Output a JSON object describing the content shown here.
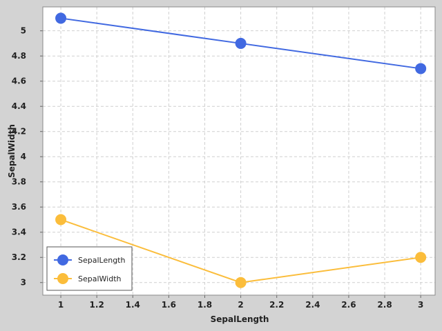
{
  "chart_data": {
    "type": "line",
    "title": "",
    "xlabel": "SepalLength",
    "ylabel": "SepalWidth",
    "xlim": [
      0.9,
      3.08
    ],
    "ylim": [
      2.9,
      5.19
    ],
    "x_ticks": [
      1,
      1.2,
      1.4,
      1.6,
      1.8,
      2,
      2.2,
      2.4,
      2.6,
      2.8,
      3
    ],
    "x_tick_labels": [
      "1",
      "1.2",
      "1.4",
      "1.6",
      "1.8",
      "2",
      "2.2",
      "2.4",
      "2.6",
      "2.8",
      "3"
    ],
    "y_ticks": [
      3,
      3.2,
      3.4,
      3.6,
      3.8,
      4,
      4.2,
      4.4,
      4.6,
      4.8,
      5
    ],
    "y_tick_labels": [
      "3",
      "3.2",
      "3.4",
      "3.6",
      "3.8",
      "4",
      "4.2",
      "4.4",
      "4.6",
      "4.8",
      "5"
    ],
    "grid": true,
    "legend_position": "bottom-left",
    "series": [
      {
        "name": "SepalLength",
        "color": "#4169e1",
        "x": [
          1,
          2,
          3
        ],
        "y": [
          5.1,
          4.9,
          4.7
        ]
      },
      {
        "name": "SepalWidth",
        "color": "#fbbd3b",
        "x": [
          1,
          2,
          3
        ],
        "y": [
          3.5,
          3.0,
          3.2
        ]
      }
    ]
  }
}
